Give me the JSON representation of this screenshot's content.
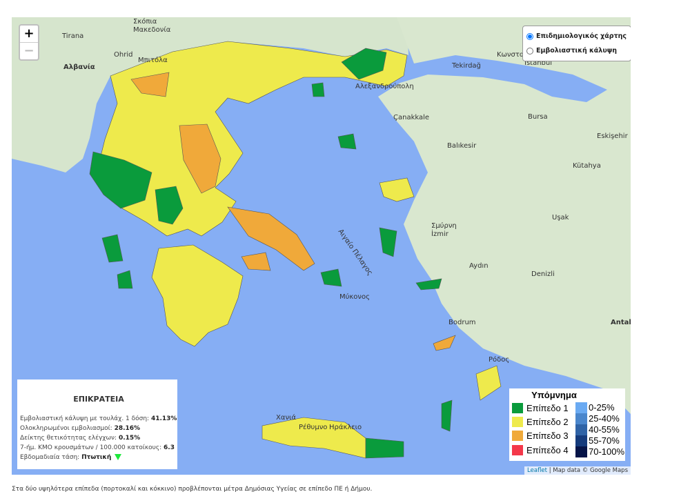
{
  "zoom": {
    "in": "+",
    "out": "−"
  },
  "layers": {
    "options": [
      "Επιδημιολογικός χάρτης",
      "Εμβολιαστική κάλυψη"
    ],
    "selected": 0
  },
  "info": {
    "title": "ΕΠΙΚΡΑΤΕΙΑ",
    "rows": [
      {
        "label": "Εμβολιαστική κάλυψη με τουλάχ. 1 δόση: ",
        "value": "41.13%"
      },
      {
        "label": "Ολοκληρωμένοι εμβολιασμοί: ",
        "value": "28.16%"
      },
      {
        "label": "Δείκτης θετικότητας ελέγχων: ",
        "value": "0.15%"
      },
      {
        "label": "7-ήμ. ΚΜΟ κρουσμάτων / 100.000 κατοίκους: ",
        "value": "6.3"
      },
      {
        "label": "Εβδομαδιαία τάση: ",
        "value": "Πτωτική"
      }
    ],
    "trend_icon": "arrow-down-icon"
  },
  "legend": {
    "title": "Υπόμνημα",
    "levels": [
      {
        "label": "Επίπεδο 1",
        "color": "#0a9b3c"
      },
      {
        "label": "Επίπεδο 2",
        "color": "#eeea4c"
      },
      {
        "label": "Επίπεδο 3",
        "color": "#f0a93a"
      },
      {
        "label": "Επίπεδο 4",
        "color": "#f4384a"
      }
    ],
    "vaccination": [
      {
        "label": "0-25%",
        "color": "#6aaaf2"
      },
      {
        "label": "25-40%",
        "color": "#4a86cc"
      },
      {
        "label": "40-55%",
        "color": "#2f63a6"
      },
      {
        "label": "55-70%",
        "color": "#153b7c"
      },
      {
        "label": "70-100%",
        "color": "#061448"
      }
    ]
  },
  "attribution": {
    "link": "Leaflet",
    "text": " | Map data © Google Maps"
  },
  "map_labels": [
    "Αλβανία",
    "Tirana",
    "Σκόπια",
    "Μακεδονία",
    "Ohrid",
    "Μπιτόλα",
    "Αλεξανδρούπολη",
    "Κωνσταντινούπολη",
    "Istanbul",
    "Tekirdağ",
    "Bursa",
    "Çanakkale",
    "Balıkesir",
    "Σμύρνη",
    "İzmir",
    "Aydın",
    "Denizli",
    "Bodrum",
    "Ρόδος",
    "Μύκονος",
    "Χανιά",
    "Ρέθυμνο",
    "Ηράκλειο",
    "Αιγαίο Πέλαγος",
    "Antalya",
    "Eskişehir",
    "Kütahya",
    "Uşak",
    "Ρέθυμνο"
  ],
  "footer": "Στα δύο υψηλότερα επίπεδα (πορτοκαλί και κόκκινο) προβλέπονται μέτρα Δημόσιας Υγείας σε επίπεδο ΠΕ ή Δήμου."
}
